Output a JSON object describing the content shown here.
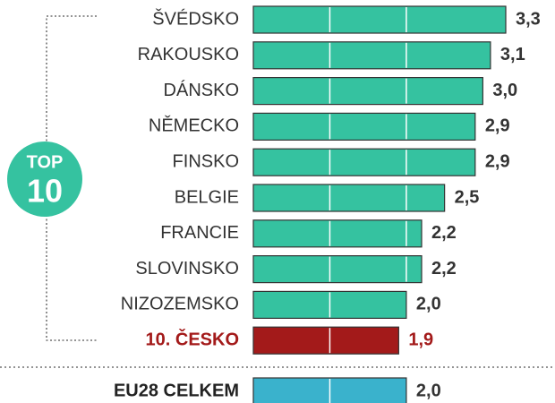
{
  "chart_data": {
    "type": "hbar",
    "badge": {
      "line1": "TOP",
      "line2": "10"
    },
    "categories": [
      "ŠVÉDSKO",
      "RAKOUSKO",
      "DÁNSKO",
      "NĚMECKO",
      "FINSKO",
      "BELGIE",
      "FRANCIE",
      "SLOVINSKO",
      "NIZOZEMSKO",
      "10. ČESKO"
    ],
    "values": [
      3.3,
      3.1,
      3.0,
      2.9,
      2.9,
      2.5,
      2.2,
      2.2,
      2.0,
      1.9
    ],
    "value_labels": [
      "3,3",
      "3,1",
      "3,0",
      "2,9",
      "2,9",
      "2,5",
      "2,2",
      "2,2",
      "2,0",
      "1,9"
    ],
    "colors": [
      "#35c2a0",
      "#35c2a0",
      "#35c2a0",
      "#35c2a0",
      "#35c2a0",
      "#35c2a0",
      "#35c2a0",
      "#35c2a0",
      "#35c2a0",
      "#a31a1a"
    ],
    "highlight_color": "#a31a1a",
    "total": {
      "label": "EU28 CELKEM",
      "value": 2.0,
      "value_label": "2,0",
      "color": "#3ab2cc"
    },
    "xlim": [
      0,
      3.3
    ],
    "gridlines": [
      1,
      2
    ]
  }
}
